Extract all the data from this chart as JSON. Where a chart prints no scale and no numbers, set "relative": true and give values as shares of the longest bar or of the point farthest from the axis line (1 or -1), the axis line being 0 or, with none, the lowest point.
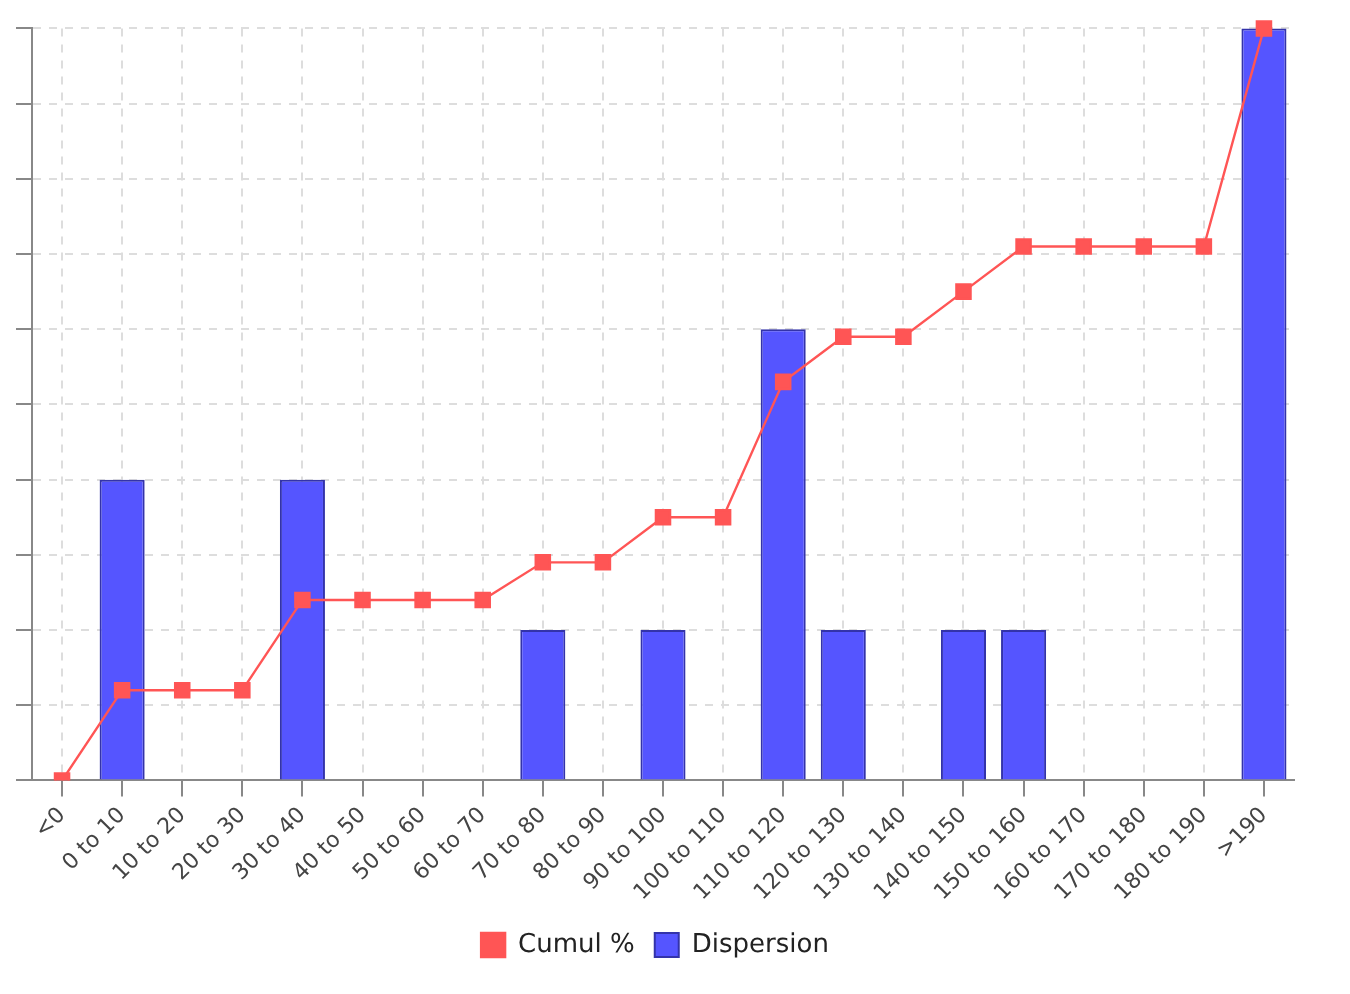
{
  "chart_data": {
    "type": "bar",
    "relative": true,
    "categories": [
      "<0",
      "0 to 10",
      "10 to 20",
      "20 to 30",
      "30 to 40",
      "40 to 50",
      "50 to 60",
      "60 to 70",
      "70 to 80",
      "80 to 90",
      "90 to 100",
      "100 to 110",
      "110 to 120",
      "120 to 130",
      "130 to 140",
      "140 to 150",
      "150 to 160",
      "160 to 170",
      "170 to 180",
      "180 to 190",
      ">190"
    ],
    "series": [
      {
        "name": "Cumul %",
        "type": "line",
        "color": "#ff5555",
        "marker": "square",
        "values": [
          0,
          0.12,
          0.12,
          0.12,
          0.24,
          0.24,
          0.24,
          0.24,
          0.29,
          0.29,
          0.35,
          0.35,
          0.53,
          0.59,
          0.59,
          0.65,
          0.71,
          0.71,
          0.71,
          0.71,
          1
        ]
      },
      {
        "name": "Dispersion",
        "color": "#5555ff",
        "values": [
          0,
          0.4,
          0,
          0,
          0.4,
          0,
          0,
          0,
          0.2,
          0,
          0.2,
          0,
          0.6,
          0.2,
          0,
          0.2,
          0.2,
          0,
          0,
          0,
          1
        ]
      }
    ],
    "grid": true,
    "legend": "bottom"
  }
}
